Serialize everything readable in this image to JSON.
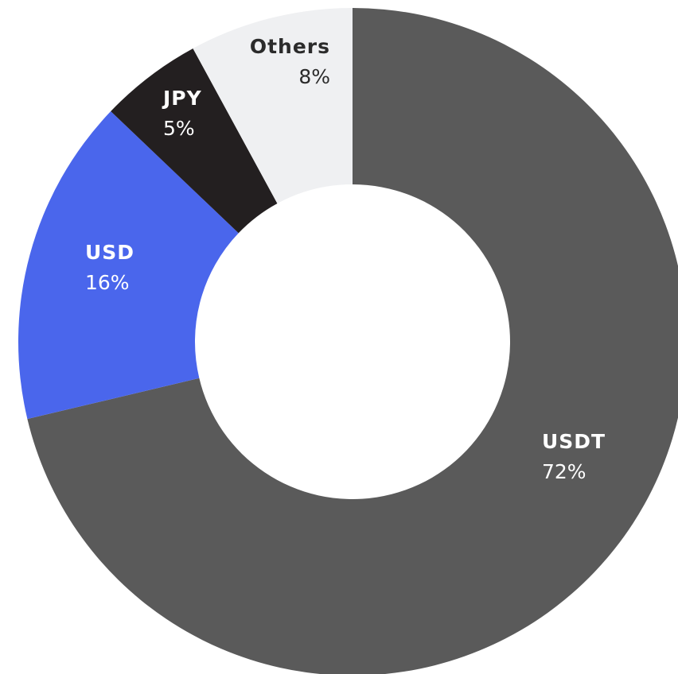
{
  "chart_data": {
    "type": "donut",
    "categories": [
      "USDT",
      "USD",
      "JPY",
      "Others"
    ],
    "values": [
      72,
      16,
      5,
      8
    ],
    "value_labels": [
      "72%",
      "16%",
      "5%",
      "8%"
    ],
    "colors": [
      "#5a5a5a",
      "#4a66ec",
      "#231f20",
      "#eff0f2"
    ]
  }
}
